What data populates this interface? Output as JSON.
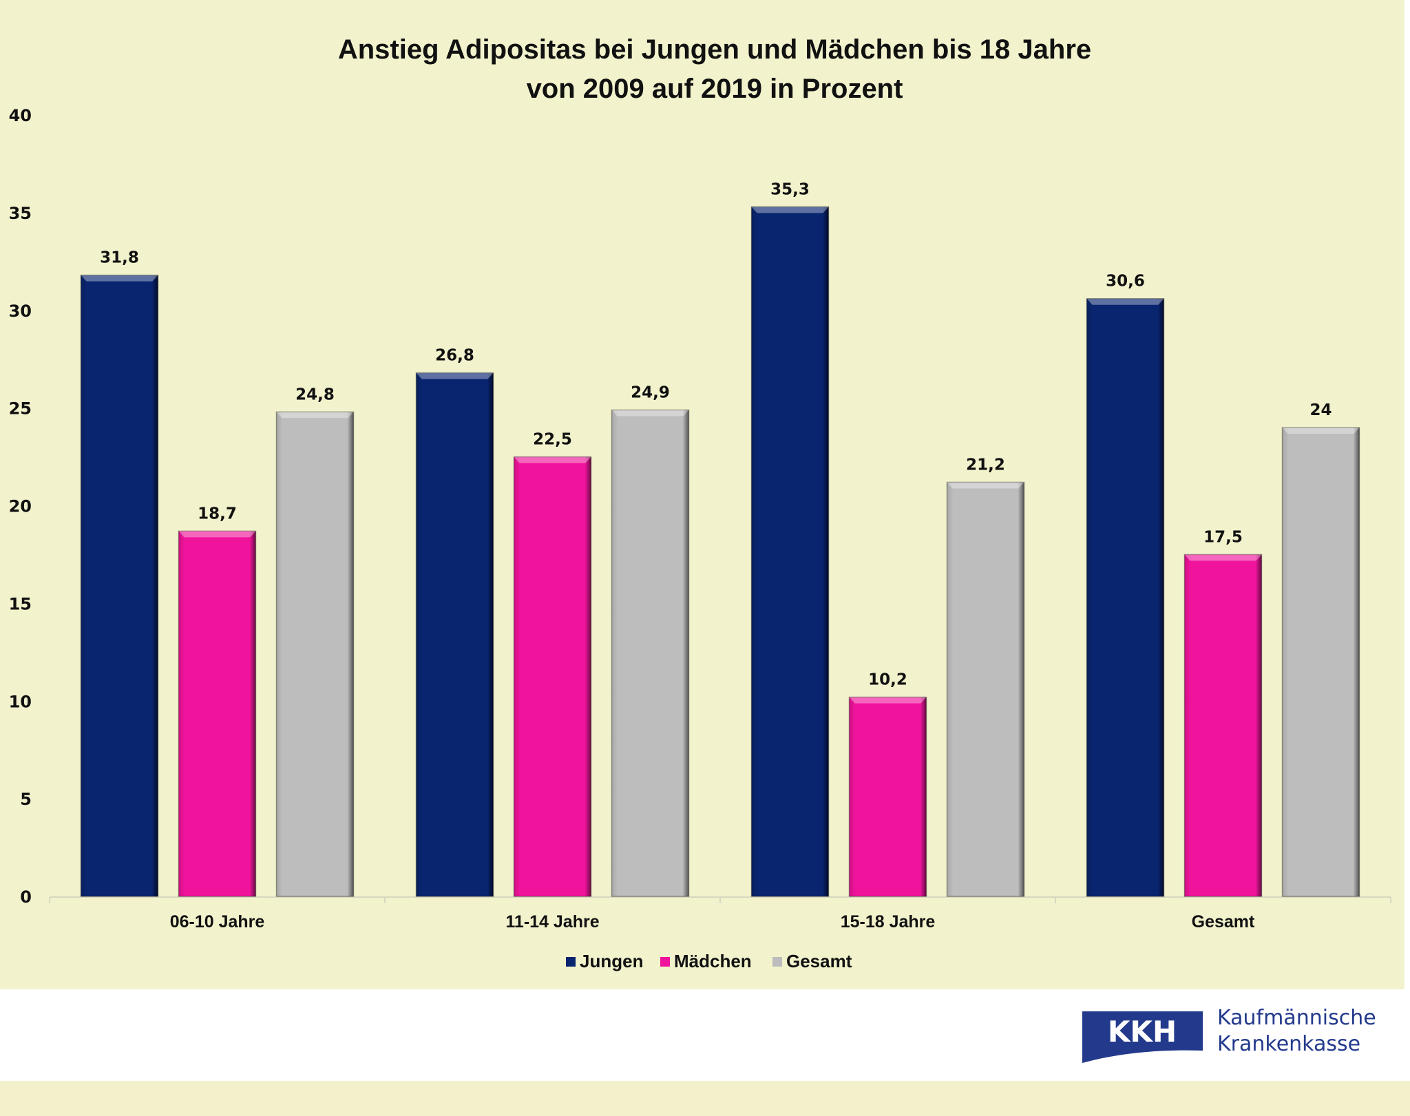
{
  "chart_data": {
    "type": "bar",
    "title": "Anstieg Adipositas bei Jungen und Mädchen bis 18 Jahre",
    "subtitle": "von 2009 auf 2019 in Prozent",
    "xlabel": "",
    "ylabel": "",
    "ylim": [
      0,
      40
    ],
    "yticks": [
      0,
      5,
      10,
      15,
      20,
      25,
      30,
      35,
      40
    ],
    "grid": false,
    "legend_position": "bottom",
    "categories": [
      "06-10 Jahre",
      "11-14 Jahre",
      "15-18 Jahre",
      "Gesamt"
    ],
    "series": [
      {
        "name": "Jungen",
        "color": "#0a2570",
        "values": [
          31.8,
          26.8,
          35.3,
          30.6
        ],
        "labels": [
          "31,8",
          "26,8",
          "35,3",
          "30,6"
        ]
      },
      {
        "name": "Mädchen",
        "color": "#f0149c",
        "values": [
          18.7,
          22.5,
          10.2,
          17.5
        ],
        "labels": [
          "18,7",
          "22,5",
          "10,2",
          "17,5"
        ]
      },
      {
        "name": "Gesamt",
        "color": "#bdbdbd",
        "values": [
          24.8,
          24.9,
          21.2,
          24
        ],
        "labels": [
          "24,8",
          "24,9",
          "21,2",
          "24"
        ]
      }
    ]
  },
  "logo": {
    "mark": "KKH",
    "line1": "Kaufmännische",
    "line2": "Krankenkasse",
    "color": "#233a8c"
  }
}
